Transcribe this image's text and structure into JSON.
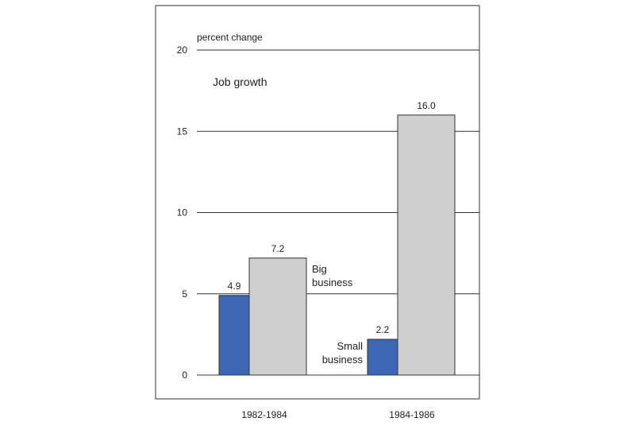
{
  "chart_data": {
    "type": "bar",
    "title": "Job growth",
    "ylabel": "percent change",
    "xlabel": "",
    "categories": [
      "1982-1984",
      "1984-1986"
    ],
    "series": [
      {
        "name": "Small business",
        "values": [
          4.9,
          2.2
        ],
        "color": "#3d67b4"
      },
      {
        "name": "Big business",
        "values": [
          7.2,
          16.0
        ],
        "color": "#cfcfcf"
      }
    ],
    "data_labels": [
      [
        "4.9",
        "2.2"
      ],
      [
        "7.2",
        "16.0"
      ]
    ],
    "ylim": [
      0,
      20
    ],
    "yticks": [
      0,
      5,
      10,
      15,
      20
    ],
    "grid": true,
    "legend": "inline labels next to bars"
  },
  "annotations": {
    "big_line1": "Big",
    "big_line2": "business",
    "small_line1": "Small",
    "small_line2": "business"
  },
  "colors": {
    "frame": "#333333",
    "grid": "#333333",
    "small_text": "#3d67b4",
    "text": "#222222"
  }
}
